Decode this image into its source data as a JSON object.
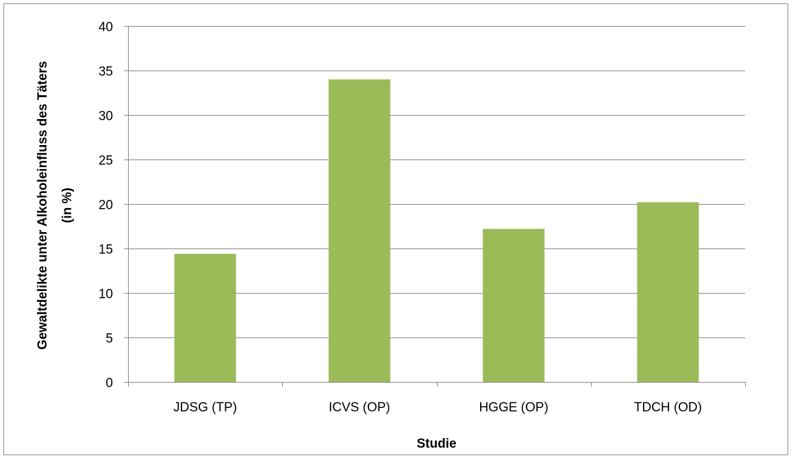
{
  "chart_data": {
    "type": "bar",
    "title": "",
    "xlabel": "Studie",
    "ylabel_line1": "Gewaltdelikte unter Alkoholeinfluss des Täters",
    "ylabel_line2": "(in %)",
    "categories": [
      "JDSG (TP)",
      "ICVS (OP)",
      "HGGE (OP)",
      "TDCH (OD)"
    ],
    "values": [
      14.4,
      34.0,
      17.2,
      20.2
    ],
    "ylim": [
      0,
      40
    ],
    "yticks": [
      0,
      5,
      10,
      15,
      20,
      25,
      30,
      35,
      40
    ],
    "grid": true,
    "legend": "none",
    "bar_color": "#9bbb59",
    "grid_color": "#878787",
    "axis_color": "#878787"
  }
}
